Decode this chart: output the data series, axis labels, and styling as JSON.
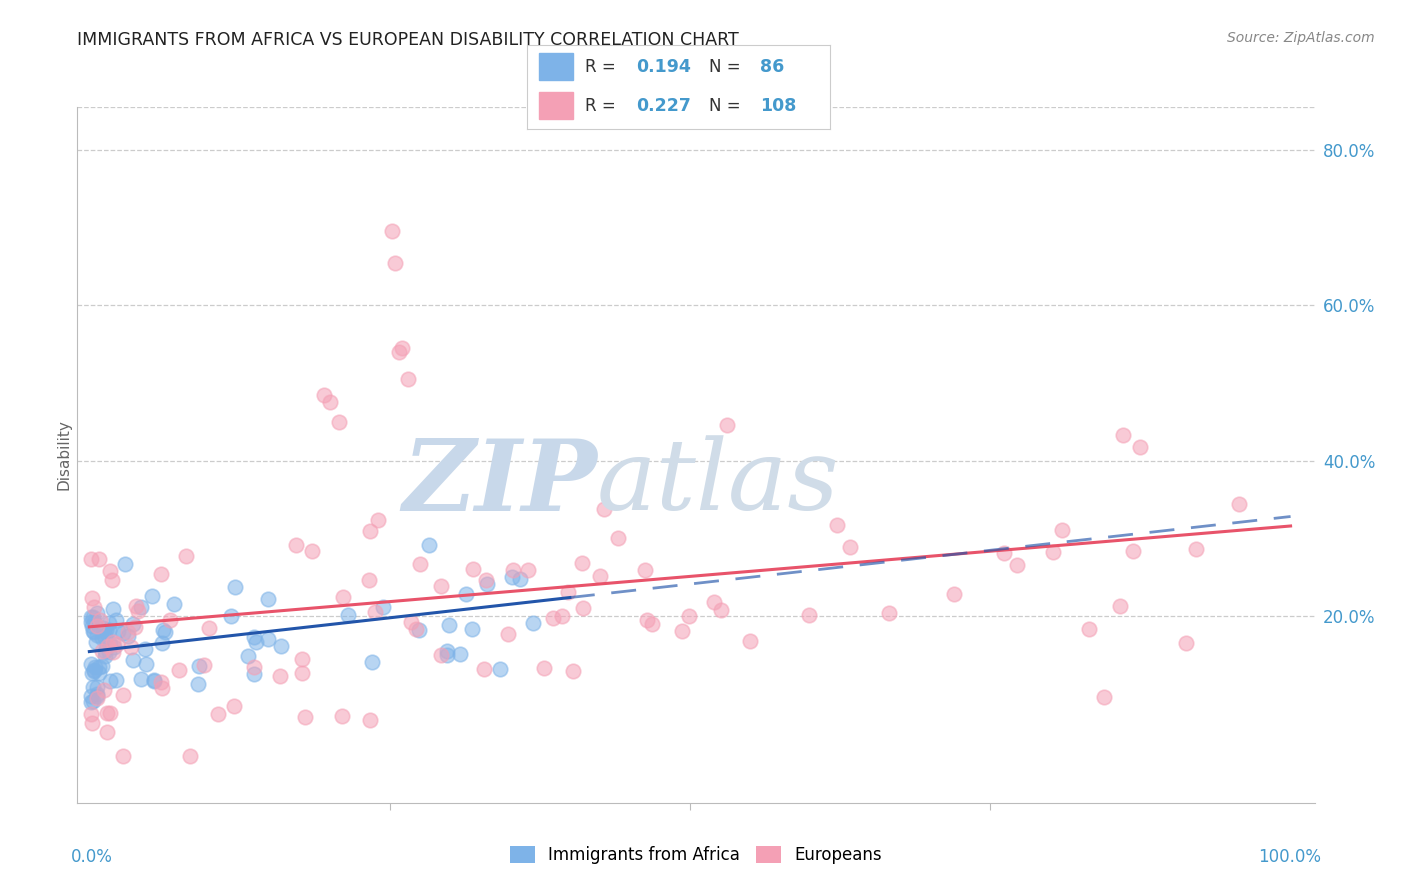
{
  "title": "IMMIGRANTS FROM AFRICA VS EUROPEAN DISABILITY CORRELATION CHART",
  "source": "Source: ZipAtlas.com",
  "ylabel": "Disability",
  "yticks": [
    "80.0%",
    "60.0%",
    "40.0%",
    "20.0%"
  ],
  "ytick_vals": [
    0.8,
    0.6,
    0.4,
    0.2
  ],
  "color_blue": "#7EB3E8",
  "color_pink": "#F4A0B5",
  "color_trend_blue": "#2255AA",
  "color_trend_pink": "#E8536A",
  "axis_label_color": "#4499CC",
  "title_color": "#222222",
  "watermark_zi_color": "#C8D8EA",
  "watermark_atlas_color": "#D0DCE8"
}
